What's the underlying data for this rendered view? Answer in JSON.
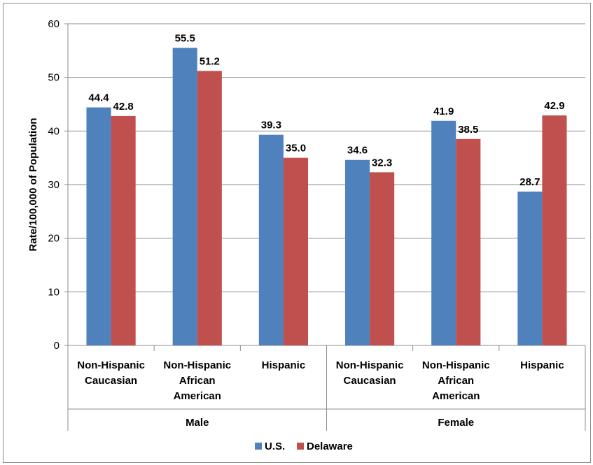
{
  "chart_data": {
    "type": "bar",
    "title": "",
    "ylabel": "Rate/100,000 of Population",
    "ylim": [
      0,
      60
    ],
    "yticks": [
      0,
      10,
      20,
      30,
      40,
      50,
      60
    ],
    "grid": true,
    "legend_position": "bottom",
    "categories": [
      [
        "Non-Hispanic",
        "Caucasian"
      ],
      [
        "Non-Hispanic",
        "African",
        "American"
      ],
      [
        "Hispanic"
      ],
      [
        "Non-Hispanic",
        "Caucasian"
      ],
      [
        "Non-Hispanic",
        "African",
        "American"
      ],
      [
        "Hispanic"
      ]
    ],
    "groups": [
      {
        "label": "Male",
        "categories": [
          0,
          1,
          2
        ]
      },
      {
        "label": "Female",
        "categories": [
          3,
          4,
          5
        ]
      }
    ],
    "series": [
      {
        "name": "U.S.",
        "color": "#4f81bd",
        "values": [
          44.4,
          55.5,
          39.3,
          34.6,
          41.9,
          28.7
        ],
        "labels": [
          "44.4",
          "55.5",
          "39.3",
          "34.6",
          "41.9",
          "28.7"
        ]
      },
      {
        "name": "Delaware",
        "color": "#c0504d",
        "values": [
          42.8,
          51.2,
          35.0,
          32.3,
          38.5,
          42.9
        ],
        "labels": [
          "42.8",
          "51.2",
          "35.0",
          "32.3",
          "38.5",
          "42.9"
        ]
      }
    ]
  }
}
